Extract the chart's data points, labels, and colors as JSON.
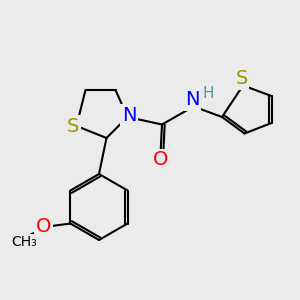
{
  "bg_color": "#ebebeb",
  "atom_colors": {
    "S": "#999900",
    "N": "#0000ff",
    "O": "#ff0000",
    "H": "#4a9a9a",
    "C": "#000000"
  },
  "bond_color": "#000000",
  "bond_width": 1.5,
  "font_size_atoms": 14,
  "font_size_small": 11
}
